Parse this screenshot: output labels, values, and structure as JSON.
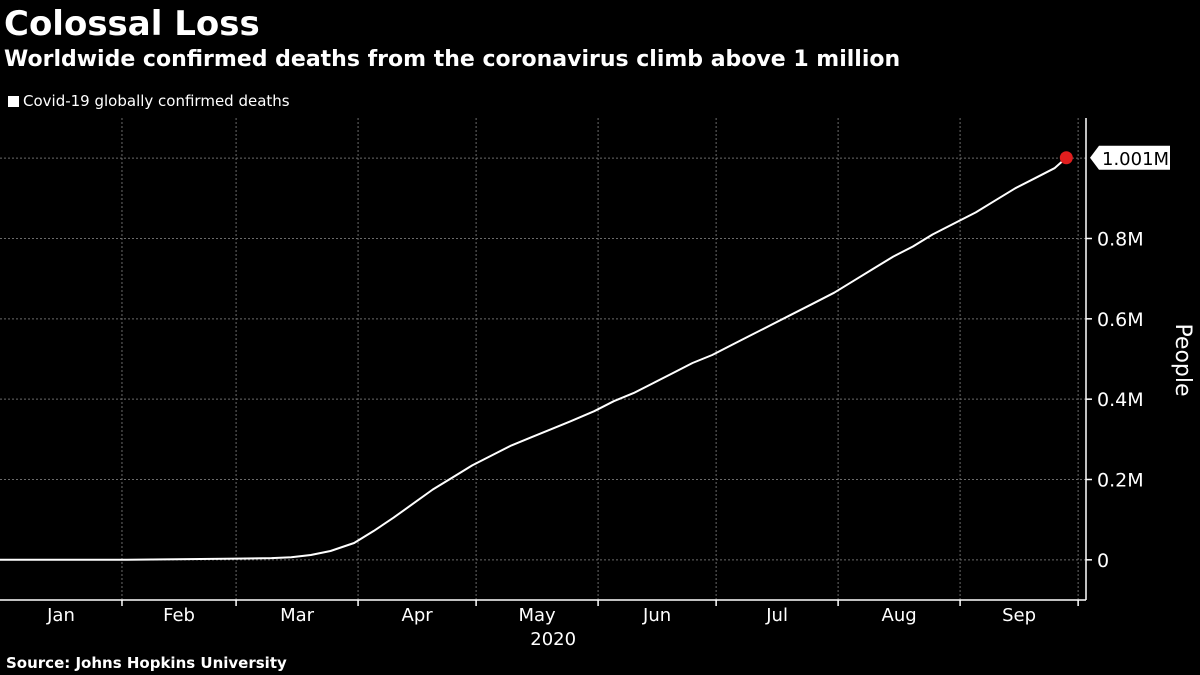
{
  "title": "Colossal Loss",
  "subtitle": "Worldwide confirmed deaths from the coronavirus climb above 1 million",
  "source": "Source: Johns Hopkins University",
  "chart_data": {
    "type": "line",
    "legend": [
      "Covid-19 globally confirmed deaths"
    ],
    "ylabel": "People",
    "xlabel": "2020",
    "ylim": [
      -100000,
      1100000
    ],
    "y_ticks": [
      0,
      200000,
      400000,
      600000,
      800000
    ],
    "y_tick_labels": [
      "0",
      "0.2M",
      "0.4M",
      "0.6M",
      "0.8M"
    ],
    "x_ticks": [
      "Jan",
      "Feb",
      "Mar",
      "Apr",
      "May",
      "Jun",
      "Jul",
      "Aug",
      "Sep"
    ],
    "x_range": [
      "2020-01-01",
      "2020-10-01"
    ],
    "grid": true,
    "last_value_label": "1.001M",
    "series": [
      {
        "name": "Covid-19 globally confirmed deaths",
        "color": "#ffffff",
        "x": [
          "2020-01-22",
          "2020-02-01",
          "2020-02-15",
          "2020-03-01",
          "2020-03-10",
          "2020-03-15",
          "2020-03-20",
          "2020-03-25",
          "2020-03-31",
          "2020-04-05",
          "2020-04-10",
          "2020-04-15",
          "2020-04-20",
          "2020-04-25",
          "2020-04-30",
          "2020-05-05",
          "2020-05-10",
          "2020-05-15",
          "2020-05-20",
          "2020-05-25",
          "2020-05-31",
          "2020-06-05",
          "2020-06-10",
          "2020-06-15",
          "2020-06-20",
          "2020-06-25",
          "2020-06-30",
          "2020-07-05",
          "2020-07-10",
          "2020-07-15",
          "2020-07-20",
          "2020-07-25",
          "2020-07-31",
          "2020-08-05",
          "2020-08-10",
          "2020-08-15",
          "2020-08-20",
          "2020-08-25",
          "2020-08-31",
          "2020-09-05",
          "2020-09-10",
          "2020-09-15",
          "2020-09-20",
          "2020-09-25",
          "2020-09-28"
        ],
        "values": [
          0,
          200,
          1600,
          3000,
          4300,
          6500,
          12000,
          22000,
          42000,
          72000,
          105000,
          140000,
          175000,
          205000,
          235000,
          260000,
          285000,
          305000,
          325000,
          345000,
          370000,
          395000,
          415000,
          440000,
          465000,
          490000,
          510000,
          535000,
          560000,
          585000,
          610000,
          635000,
          665000,
          695000,
          725000,
          755000,
          780000,
          810000,
          840000,
          865000,
          895000,
          925000,
          950000,
          975000,
          1001000
        ]
      }
    ],
    "highlight_color": "#e01e1e"
  }
}
